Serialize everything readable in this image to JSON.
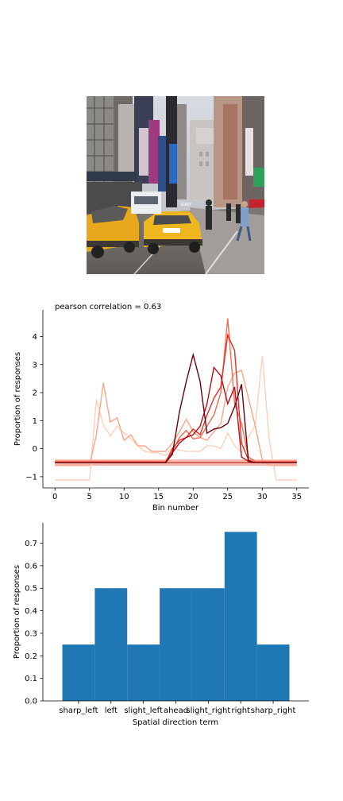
{
  "photo": {
    "description_icon": "street-scene-photo",
    "sign_text": "SONY"
  },
  "chart_data": [
    {
      "type": "line",
      "title": "pearson correlation = 0.63",
      "xlabel": "Bin number",
      "ylabel": "Proportion of responses",
      "xlim": [
        -1.75,
        36.75
      ],
      "ylim": [
        -1.4,
        4.95
      ],
      "xticks": [
        0,
        5,
        10,
        15,
        20,
        25,
        30,
        35
      ],
      "yticks": [
        -1,
        0,
        1,
        2,
        3,
        4
      ],
      "baseline": {
        "y": -0.5,
        "x": [
          0,
          35
        ]
      },
      "series": [
        {
          "color": "#fdd0bb",
          "values": [
            -1.12,
            -1.12,
            -1.12,
            -1.12,
            -1.12,
            -1.12,
            1.75,
            0.85,
            0.45,
            0.8,
            0.55,
            0.35,
            0.1,
            -0.1,
            -0.15,
            -0.15,
            -0.25,
            0.05,
            -0.05,
            -0.1,
            -0.1,
            -0.1,
            0.1,
            0.1,
            0.0,
            0.55,
            0.1,
            -0.15,
            0.4,
            0.85,
            3.3,
            0.35,
            -1.12,
            -1.12,
            -1.12,
            -1.12
          ]
        },
        {
          "color": "#fca487",
          "values": [
            -0.6,
            -0.6,
            -0.6,
            -0.6,
            -0.6,
            -0.6,
            0.5,
            2.35,
            0.95,
            1.1,
            0.3,
            0.5,
            0.1,
            0.1,
            -0.1,
            -0.1,
            -0.1,
            0.2,
            0.6,
            1.05,
            0.6,
            0.4,
            0.3,
            0.6,
            0.9,
            2.2,
            2.7,
            2.8,
            1.8,
            0.8,
            -0.4,
            -0.6,
            -0.6,
            -0.6,
            -0.6,
            -0.6
          ]
        },
        {
          "color": "#fb6b4b",
          "values": [
            -0.45,
            -0.45,
            -0.45,
            -0.45,
            -0.45,
            -0.45,
            -0.45,
            -0.45,
            -0.45,
            -0.45,
            -0.45,
            -0.45,
            -0.45,
            -0.45,
            -0.45,
            -0.45,
            -0.45,
            -0.1,
            0.4,
            0.65,
            0.35,
            0.4,
            0.8,
            1.2,
            2.0,
            4.65,
            1.6,
            0.9,
            -0.3,
            -0.45,
            -0.45,
            -0.45,
            -0.45,
            -0.45,
            -0.45,
            -0.45
          ]
        },
        {
          "color": "#e32f27",
          "values": [
            -0.5,
            -0.5,
            -0.5,
            -0.5,
            -0.5,
            -0.5,
            -0.5,
            -0.5,
            -0.5,
            -0.5,
            -0.5,
            -0.5,
            -0.5,
            -0.5,
            -0.5,
            -0.5,
            -0.5,
            0.0,
            0.3,
            0.4,
            0.7,
            0.5,
            1.2,
            1.8,
            2.2,
            4.05,
            3.5,
            0.2,
            -0.4,
            -0.5,
            -0.5,
            -0.5,
            -0.5,
            -0.5,
            -0.5,
            -0.5
          ]
        },
        {
          "color": "#b11218",
          "values": [
            -0.5,
            -0.5,
            -0.5,
            -0.5,
            -0.5,
            -0.5,
            -0.5,
            -0.5,
            -0.5,
            -0.5,
            -0.5,
            -0.5,
            -0.5,
            -0.5,
            -0.5,
            -0.5,
            -0.5,
            -0.15,
            0.2,
            0.4,
            0.5,
            0.8,
            1.6,
            2.9,
            2.6,
            1.6,
            2.2,
            -0.3,
            -0.45,
            -0.5,
            -0.5,
            -0.5,
            -0.5,
            -0.5,
            -0.5,
            -0.5
          ]
        },
        {
          "color": "#67000d",
          "values": [
            -0.5,
            -0.5,
            -0.5,
            -0.5,
            -0.5,
            -0.5,
            -0.5,
            -0.5,
            -0.5,
            -0.5,
            -0.5,
            -0.5,
            -0.5,
            -0.5,
            -0.5,
            -0.5,
            -0.5,
            -0.2,
            1.3,
            2.4,
            3.35,
            2.4,
            0.55,
            0.7,
            0.75,
            0.9,
            1.5,
            2.3,
            -0.45,
            -0.5,
            -0.5,
            -0.5,
            -0.5,
            -0.5,
            -0.5,
            -0.5
          ]
        }
      ]
    },
    {
      "type": "bar",
      "xlabel": "Spatial direction term",
      "ylabel": "Proportion of responses",
      "ylim": [
        0,
        0.79
      ],
      "yticks": [
        "0.0",
        "0.1",
        "0.2",
        "0.3",
        "0.4",
        "0.5",
        "0.6",
        "0.7"
      ],
      "categories": [
        "sharp_left",
        "left",
        "slight_left",
        "ahead",
        "slight_right",
        "right",
        "sharp_right"
      ],
      "values": [
        0.25,
        0.5,
        0.25,
        0.5,
        0.5,
        0.75,
        0.25
      ],
      "color": "#1f77b4"
    }
  ]
}
